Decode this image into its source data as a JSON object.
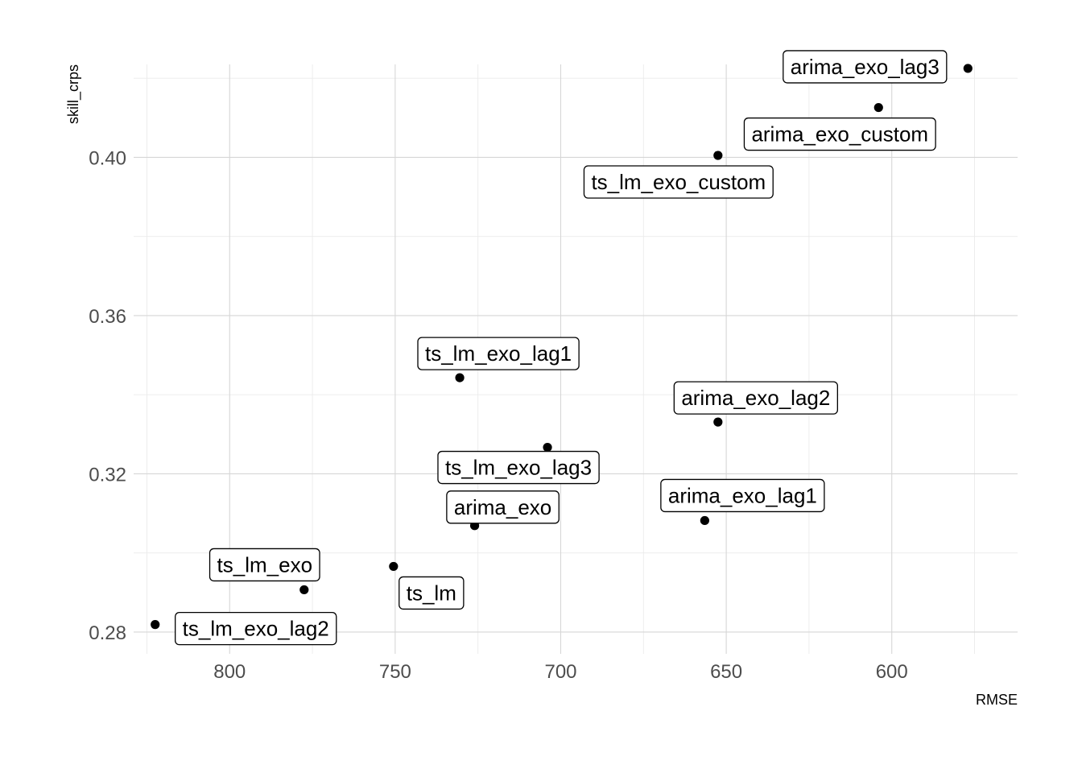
{
  "chart_data": {
    "type": "scatter",
    "xlabel": "RMSE",
    "ylabel": "skill_crps",
    "x_reversed": true,
    "xlim": [
      829,
      562
    ],
    "ylim": [
      0.2745,
      0.4235
    ],
    "x_ticks": [
      800,
      750,
      700,
      650,
      600
    ],
    "x_tick_labels": [
      "800",
      "750",
      "700",
      "650",
      "600"
    ],
    "y_ticks": [
      0.28,
      0.32,
      0.36,
      0.4
    ],
    "y_tick_labels": [
      "0.28",
      "0.32",
      "0.36",
      "0.40"
    ],
    "grid": true,
    "legend": "none",
    "points": [
      {
        "label": "arima_exo_lag3",
        "x": 577.0,
        "y": 0.4225
      },
      {
        "label": "arima_exo_custom",
        "x": 604.0,
        "y": 0.4126
      },
      {
        "label": "ts_lm_exo_custom",
        "x": 652.5,
        "y": 0.4005
      },
      {
        "label": "ts_lm_exo_lag1",
        "x": 730.5,
        "y": 0.3443
      },
      {
        "label": "arima_exo_lag2",
        "x": 652.5,
        "y": 0.3331
      },
      {
        "label": "ts_lm_exo_lag3",
        "x": 704.0,
        "y": 0.3267
      },
      {
        "label": "arima_exo_lag1",
        "x": 656.5,
        "y": 0.3082
      },
      {
        "label": "arima_exo",
        "x": 726.0,
        "y": 0.3069
      },
      {
        "label": "ts_lm",
        "x": 750.5,
        "y": 0.2966
      },
      {
        "label": "ts_lm_exo",
        "x": 777.5,
        "y": 0.2907
      },
      {
        "label": "ts_lm_exo_lag2",
        "x": 822.5,
        "y": 0.2819
      }
    ]
  }
}
